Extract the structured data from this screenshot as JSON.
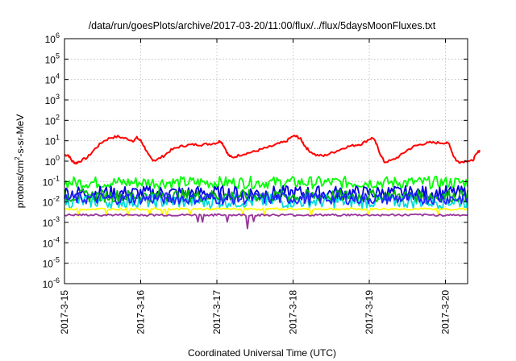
{
  "chart_data": {
    "type": "line",
    "title": "/data/run/goesPlots/archive/2017-03-20/11:00/flux/../flux/5daysMoonFluxes.txt",
    "xlabel": "Coordinated Universal Time (UTC)",
    "ylabel": {
      "pre": "protons/cm",
      "sup": "2",
      "post": "-s-sr-MeV"
    },
    "yscale": "log",
    "ylim": [
      1e-06,
      1000000.0
    ],
    "xlim": [
      "2017-03-15",
      "2017-03-20 11:00"
    ],
    "grid": true,
    "y_ticks": [
      {
        "value": 1e-06,
        "base": "10",
        "exp": "-6"
      },
      {
        "value": 1e-05,
        "base": "10",
        "exp": "-5"
      },
      {
        "value": 0.0001,
        "base": "10",
        "exp": "-4"
      },
      {
        "value": 0.001,
        "base": "10",
        "exp": "-3"
      },
      {
        "value": 0.01,
        "base": "10",
        "exp": "-2"
      },
      {
        "value": 0.1,
        "base": "10",
        "exp": "-1"
      },
      {
        "value": 1,
        "base": "10",
        "exp": "0"
      },
      {
        "value": 10,
        "base": "10",
        "exp": "1"
      },
      {
        "value": 100,
        "base": "10",
        "exp": "2"
      },
      {
        "value": 1000,
        "base": "10",
        "exp": "3"
      },
      {
        "value": 10000,
        "base": "10",
        "exp": "4"
      },
      {
        "value": 100000,
        "base": "10",
        "exp": "5"
      },
      {
        "value": 1000000,
        "base": "10",
        "exp": "6"
      }
    ],
    "x_ticks": [
      "2017-3-15",
      "2017-3-16",
      "2017-3-17",
      "2017-3-18",
      "2017-3-19",
      "2017-3-20"
    ],
    "series": [
      {
        "color": "#ff0000",
        "x": [
          0,
          0.05,
          0.1,
          0.15,
          0.2,
          0.3,
          0.4,
          0.5,
          0.6,
          0.7,
          0.8,
          0.9,
          0.95,
          1.0,
          1.05,
          1.1,
          1.15,
          1.2,
          1.3,
          1.4,
          1.5,
          1.6,
          1.7,
          1.8,
          1.9,
          2.0,
          2.05,
          2.1,
          2.15,
          2.2,
          2.3,
          2.4,
          2.5,
          2.6,
          2.7,
          2.8,
          2.9,
          3.0,
          3.05,
          3.1,
          3.15,
          3.2,
          3.3,
          3.4,
          3.5,
          3.6,
          3.7,
          3.8,
          3.9,
          4.0,
          4.05,
          4.1,
          4.15,
          4.2,
          4.3,
          4.4,
          4.5,
          4.6,
          4.7,
          4.8,
          4.9,
          5.0,
          5.05,
          5.1,
          5.15,
          5.2,
          5.3,
          5.35,
          5.4,
          5.45
        ],
        "y": [
          2.0,
          2.0,
          1.0,
          0.8,
          1.0,
          1.5,
          4.0,
          9.0,
          14,
          16,
          13,
          10,
          14,
          10,
          5,
          2.0,
          1.2,
          1.1,
          1.8,
          3.5,
          5.0,
          6.0,
          6.5,
          6.5,
          7.0,
          8.0,
          10,
          5.0,
          2.0,
          1.5,
          2.0,
          2.5,
          3.0,
          4.0,
          5.0,
          7.0,
          9.0,
          17,
          16,
          12,
          6.0,
          3.5,
          2.0,
          1.8,
          2.5,
          3.5,
          5.0,
          6.0,
          7.0,
          12,
          14,
          6.0,
          2.0,
          0.9,
          1.1,
          1.8,
          3.5,
          5.5,
          7.0,
          8.0,
          8.0,
          8.0,
          7.0,
          2.0,
          1.0,
          0.9,
          1.1,
          1.0,
          2.0,
          3.5
        ]
      },
      {
        "color": "#00ff00",
        "base": 0.09,
        "amp": 0.3
      },
      {
        "color": "#0000dd",
        "base": 0.028,
        "amp": 0.35
      },
      {
        "color": "#00dddd",
        "base": 0.011,
        "amp": 0.35
      },
      {
        "color": "#00bb00",
        "base": 0.02,
        "amp": 0.3
      },
      {
        "color": "#2222ff",
        "base": 0.015,
        "amp": 0.3
      },
      {
        "color": "#ffff00",
        "base": 0.0045,
        "amp": 0.05
      },
      {
        "color": "#993399",
        "base": 0.0023,
        "amp": 0.05
      }
    ]
  }
}
